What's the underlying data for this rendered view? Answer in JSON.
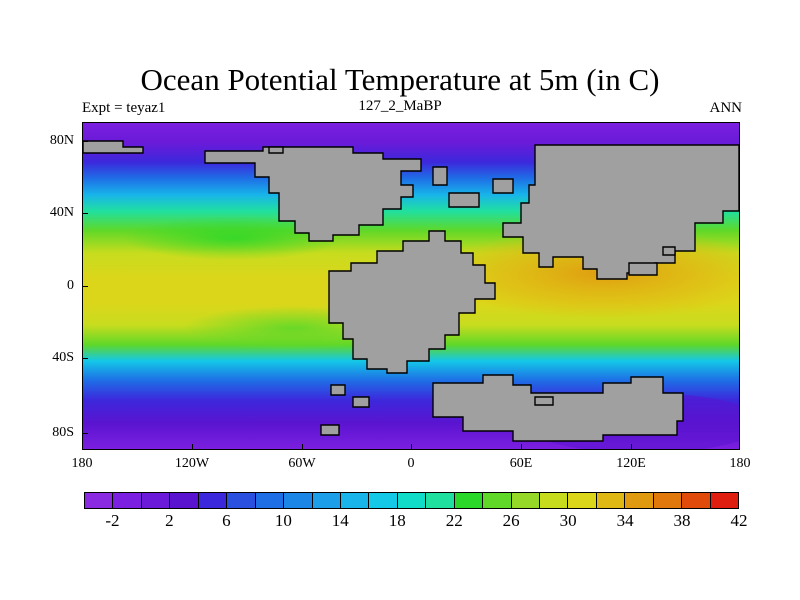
{
  "title": "Ocean Potential Temperature at 5m (in C)",
  "subtitle_left": "Expt = teyaz1",
  "subtitle_center": "127_2_MaBP",
  "subtitle_right": "ANN",
  "lat_labels": [
    "80N",
    "40N",
    "0",
    "40S",
    "80S"
  ],
  "lon_labels": [
    "180",
    "120W",
    "60W",
    "0",
    "60E",
    "120E",
    "180"
  ],
  "colorbar": {
    "colors": [
      "#8a2be2",
      "#7b1fe0",
      "#6a1ad8",
      "#5a14d0",
      "#3c28dc",
      "#2a50e0",
      "#1e6ee6",
      "#1c86e6",
      "#1c9ee8",
      "#18b4ea",
      "#14c8e8",
      "#10dcc8",
      "#20e0a0",
      "#2ad82a",
      "#60d828",
      "#96d828",
      "#c8dc1e",
      "#dcd61a",
      "#e0b814",
      "#e09a10",
      "#e0780c",
      "#e04a0a",
      "#e01e10"
    ],
    "labels": [
      "-2",
      "2",
      "6",
      "10",
      "14",
      "18",
      "22",
      "26",
      "30",
      "34",
      "38",
      "42"
    ]
  },
  "land_color": "#a0a0a0"
}
